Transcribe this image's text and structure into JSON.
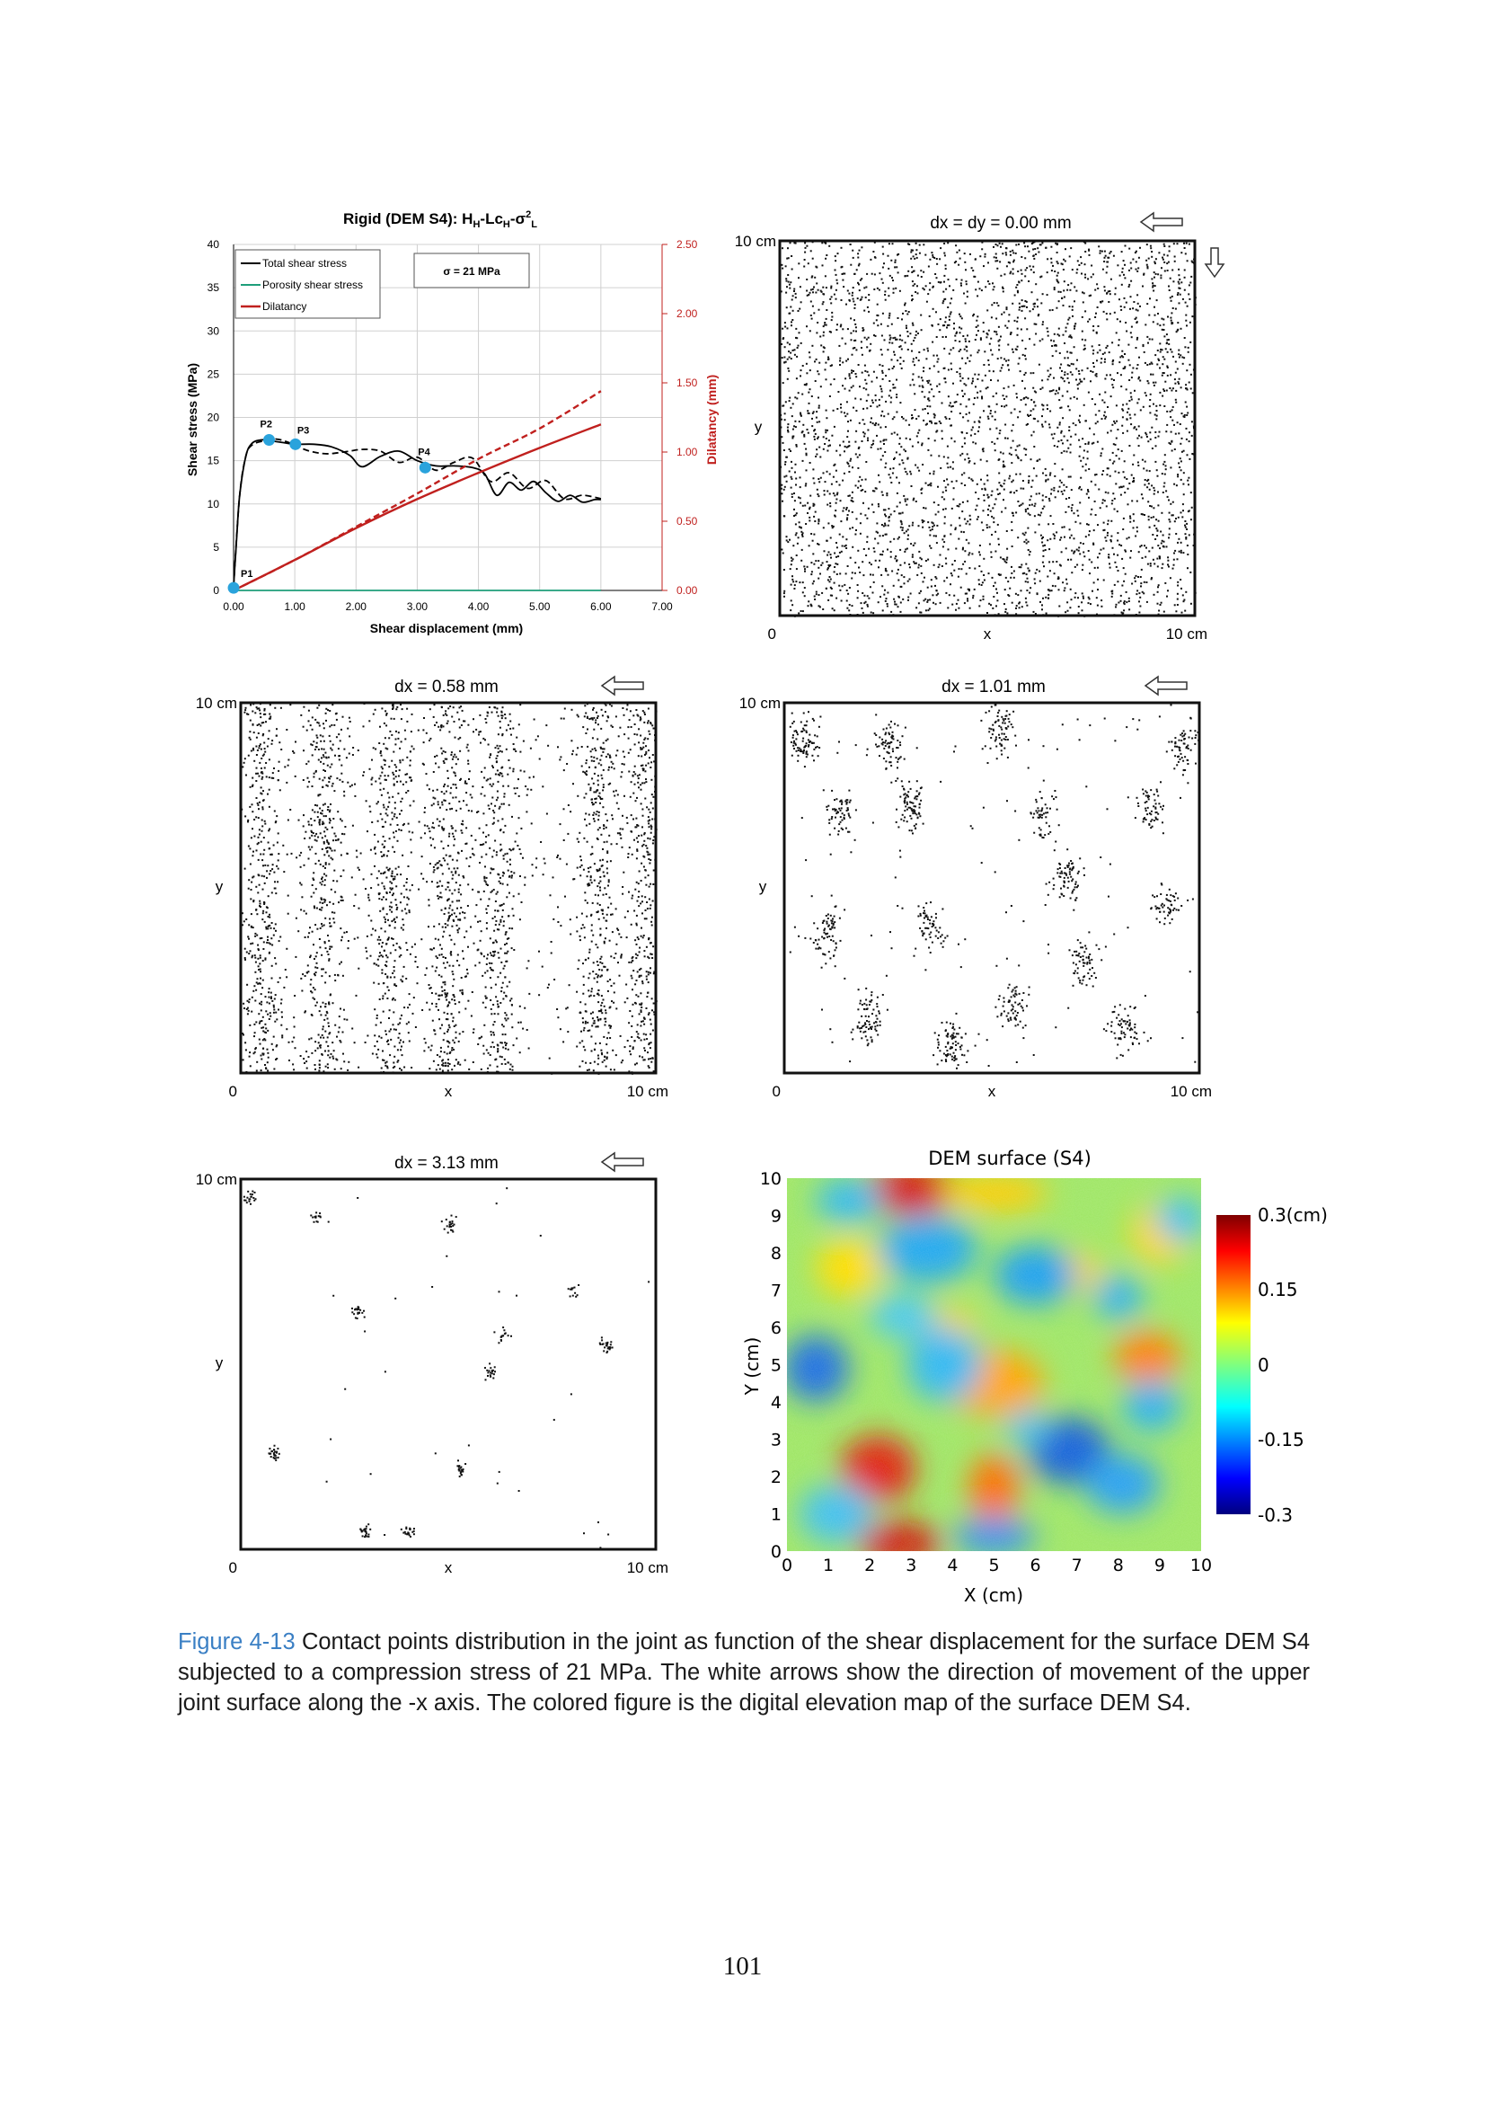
{
  "chart_data": [
    {
      "type": "line",
      "title": "Rigid (DEM S4): H",
      "title_sub": "H",
      "title_mid": "-Lc",
      "title_sub2": "H",
      "title_mid2": "-σ",
      "title_sup": "2",
      "title_sub3": "L",
      "xlabel": "Shear displacement (mm)",
      "ylabel": "Shear stress (MPa)",
      "y2label": "Dilatancy (mm)",
      "xlim": [
        0,
        7
      ],
      "ylim": [
        0,
        40
      ],
      "y2lim": [
        0,
        2.5
      ],
      "x_ticks": [
        "0.00",
        "1.00",
        "2.00",
        "3.00",
        "4.00",
        "5.00",
        "6.00",
        "7.00"
      ],
      "y_ticks": [
        "0",
        "5",
        "10",
        "15",
        "20",
        "25",
        "30",
        "35",
        "40"
      ],
      "y2_ticks": [
        "0.00",
        "0.50",
        "1.00",
        "1.50",
        "2.00",
        "2.50"
      ],
      "annotation": "σ = 21 MPa",
      "grid": true,
      "legend_position": "top-left",
      "legend": [
        "Total shear stress",
        "Porosity shear stress",
        "Dilatancy"
      ],
      "series": [
        {
          "name": "Total shear stress",
          "color": "#000000",
          "axis": "left",
          "style": "solid",
          "x": [
            0,
            0.05,
            0.1,
            0.2,
            0.3,
            0.45,
            0.6,
            0.8,
            1.0,
            1.3,
            1.6,
            1.9,
            2.1,
            2.4,
            2.7,
            3.0,
            3.3,
            3.6,
            3.9,
            4.1,
            4.3,
            4.5,
            4.7,
            4.9,
            5.1,
            5.3,
            5.5,
            5.7,
            5.9,
            6.0
          ],
          "y": [
            0.5,
            6,
            11,
            15.5,
            17,
            17.4,
            17.3,
            17.1,
            16.9,
            16.9,
            16.6,
            15.6,
            14.3,
            15.5,
            16.1,
            15.0,
            14.4,
            14.4,
            14.2,
            13.5,
            11.0,
            12.5,
            11.6,
            12.6,
            11.3,
            10.3,
            11.0,
            10.2,
            10.5,
            10.5
          ]
        },
        {
          "name": "Total shear stress (dashed)",
          "color": "#000000",
          "axis": "left",
          "style": "dashed",
          "x": [
            0,
            0.1,
            0.2,
            0.3,
            0.5,
            0.7,
            0.9,
            1.2,
            1.5,
            1.8,
            2.1,
            2.4,
            2.7,
            3.0,
            3.3,
            3.6,
            3.9,
            4.2,
            4.5,
            4.8,
            5.1,
            5.4,
            5.7,
            6.0
          ],
          "y": [
            0.5,
            11,
            15.5,
            16.8,
            17.3,
            17.5,
            17.1,
            16.2,
            15.8,
            16.0,
            16.3,
            16.1,
            14.8,
            15.4,
            13.9,
            14.8,
            15.3,
            12.6,
            13.6,
            11.8,
            12.7,
            10.6,
            11.0,
            10.6
          ]
        },
        {
          "name": "Porosity shear stress",
          "color": "#1e9e7a",
          "axis": "left",
          "style": "solid",
          "x": [
            0,
            6.0
          ],
          "y": [
            0,
            0
          ]
        },
        {
          "name": "Dilatancy",
          "color": "#c0201e",
          "axis": "right",
          "style": "solid",
          "x": [
            0,
            1,
            2,
            3,
            4,
            5,
            6
          ],
          "y": [
            0,
            0.22,
            0.45,
            0.66,
            0.85,
            1.03,
            1.2
          ]
        },
        {
          "name": "Dilatancy (dashed)",
          "color": "#c0201e",
          "axis": "right",
          "style": "dashed",
          "x": [
            0,
            1,
            2,
            3,
            4,
            5,
            6
          ],
          "y": [
            0,
            0.22,
            0.46,
            0.7,
            0.95,
            1.17,
            1.44
          ]
        }
      ],
      "points": [
        {
          "label": "P1",
          "x": 0.0,
          "y": 0.3
        },
        {
          "label": "P2",
          "x": 0.58,
          "y": 17.4
        },
        {
          "label": "P3",
          "x": 1.01,
          "y": 16.9
        },
        {
          "label": "P4",
          "x": 3.13,
          "y": 14.2
        }
      ]
    },
    {
      "type": "scatter",
      "title": "dx = dy = 0.00 mm",
      "xlabel": "x",
      "ylabel": "y",
      "corner_top": "10 cm",
      "corner_origin": "0",
      "corner_right": "10 cm",
      "density": "very dense",
      "arrows": [
        "left",
        "down"
      ]
    },
    {
      "type": "scatter",
      "title": "dx = 0.58 mm",
      "xlabel": "x",
      "ylabel": "y",
      "corner_top": "10 cm",
      "corner_origin": "0",
      "corner_right": "10 cm",
      "density": "dense",
      "arrows": [
        "left"
      ]
    },
    {
      "type": "scatter",
      "title": "dx = 1.01 mm",
      "xlabel": "x",
      "ylabel": "y",
      "corner_top": "10 cm",
      "corner_origin": "0",
      "corner_right": "10 cm",
      "density": "sparse clusters",
      "arrows": [
        "left"
      ]
    },
    {
      "type": "scatter",
      "title": "dx = 3.13 mm",
      "xlabel": "x",
      "ylabel": "y",
      "corner_top": "10 cm",
      "corner_origin": "0",
      "corner_right": "10 cm",
      "density": "very sparse clusters",
      "arrows": [
        "left"
      ]
    },
    {
      "type": "heatmap",
      "title": "DEM surface (S4)",
      "xlabel": "X (cm)",
      "ylabel": "Y (cm)",
      "x_ticks": [
        "0",
        "1",
        "2",
        "3",
        "4",
        "5",
        "6",
        "7",
        "8",
        "9",
        "10"
      ],
      "y_ticks": [
        "0",
        "1",
        "2",
        "3",
        "4",
        "5",
        "6",
        "7",
        "8",
        "9",
        "10"
      ],
      "xlim": [
        0,
        10
      ],
      "ylim": [
        0,
        10
      ],
      "colorbar_labels": [
        "0.3(cm)",
        "0.15",
        "0",
        "-0.15",
        "-0.3"
      ],
      "colorbar_range": [
        -0.3,
        0.3
      ],
      "colormap": "jet"
    }
  ],
  "caption": {
    "label": "Figure 4-13",
    "text": " Contact points distribution in the joint as function of the shear displacement for the surface DEM S4 subjected to a compression stress of 21 MPa. The white arrows show the direction of movement of the upper joint surface along the -x axis.  The colored figure is the digital elevation map of the surface DEM S4."
  },
  "page_number": "101",
  "colors": {
    "total_shear": "#000000",
    "porosity_shear": "#1e9e7a",
    "dilatancy": "#c0201e",
    "point_marker": "#2aa3dc",
    "caption_label": "#3a7fc4"
  }
}
